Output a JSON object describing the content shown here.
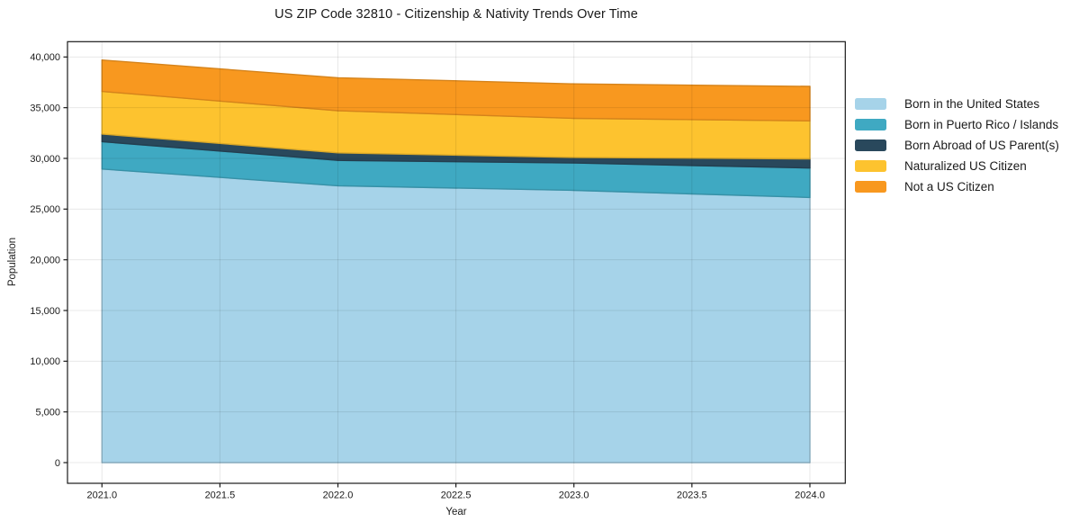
{
  "chart_data": {
    "type": "area",
    "stacked": true,
    "title": "US ZIP Code 32810 - Citizenship & Nativity Trends Over Time",
    "xlabel": "Year",
    "ylabel": "Population",
    "x": [
      2021,
      2022,
      2023,
      2024
    ],
    "series": [
      {
        "name": "Born in the United States",
        "color": "#a6d3e9",
        "values": [
          28950,
          27300,
          26850,
          26150
        ]
      },
      {
        "name": "Born in Puerto Rico / Islands",
        "color": "#3fa9c2",
        "values": [
          2700,
          2500,
          2700,
          2900
        ]
      },
      {
        "name": "Born Abroad of US Parent(s)",
        "color": "#29485c",
        "values": [
          750,
          750,
          550,
          900
        ]
      },
      {
        "name": "Naturalized US Citizen",
        "color": "#fdc32f",
        "values": [
          4200,
          4150,
          3850,
          3750
        ]
      },
      {
        "name": "Not a US Citizen",
        "color": "#f8981f",
        "values": [
          3100,
          3250,
          3400,
          3400
        ]
      }
    ],
    "cumulative_totals": {
      "2021": 39700,
      "2022": 37950,
      "2023": 37350,
      "2024": 37100
    },
    "xticks": [
      2021.0,
      2021.5,
      2022.0,
      2022.5,
      2023.0,
      2023.5,
      2024.0
    ],
    "yticks": [
      0,
      5000,
      10000,
      15000,
      20000,
      25000,
      30000,
      35000,
      40000
    ],
    "xlim": [
      2020.854,
      2024.15
    ],
    "ylim": [
      -2040,
      41510
    ],
    "grid": true,
    "legend_position": "right",
    "colors": {
      "background": "#ffffff",
      "frame": "#1a1a1a",
      "grid_overlay": "rgba(0,0,0,0.09)",
      "text": "#1a1a1a"
    }
  }
}
